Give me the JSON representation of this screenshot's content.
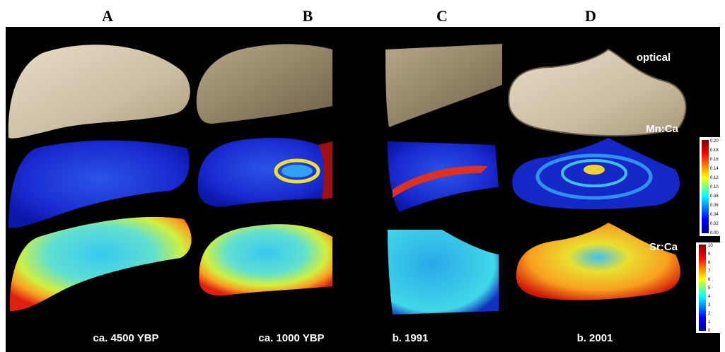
{
  "header": {
    "columns": [
      "A",
      "B",
      "C",
      "D"
    ]
  },
  "rows": [
    "optical",
    "Mn:Ca",
    "Sr:Ca"
  ],
  "footer": {
    "labels": [
      "ca. 4500 YBP",
      "ca. 1000 YBP",
      "b. 1991",
      "b. 2001"
    ]
  },
  "colorbars": {
    "mn_ca": [
      "0.20",
      "0.18",
      "0.16",
      "0.14",
      "0.12",
      "0.10",
      "0.08",
      "0.06",
      "0.04",
      "0.02",
      "0.00"
    ],
    "sr_ca": [
      "10",
      "9",
      "8",
      "7",
      "6",
      "5",
      "4",
      "3",
      "2",
      "1",
      "0"
    ]
  }
}
